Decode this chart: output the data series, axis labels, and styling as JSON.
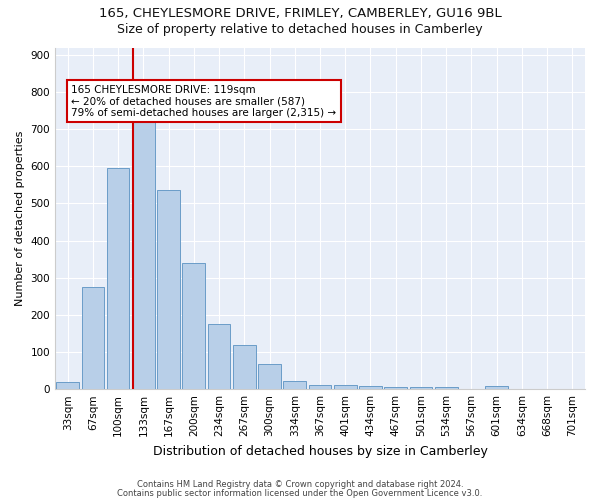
{
  "title1": "165, CHEYLESMORE DRIVE, FRIMLEY, CAMBERLEY, GU16 9BL",
  "title2": "Size of property relative to detached houses in Camberley",
  "xlabel": "Distribution of detached houses by size in Camberley",
  "ylabel": "Number of detached properties",
  "categories": [
    "33sqm",
    "67sqm",
    "100sqm",
    "133sqm",
    "167sqm",
    "200sqm",
    "234sqm",
    "267sqm",
    "300sqm",
    "334sqm",
    "367sqm",
    "401sqm",
    "434sqm",
    "467sqm",
    "501sqm",
    "534sqm",
    "567sqm",
    "601sqm",
    "634sqm",
    "668sqm",
    "701sqm"
  ],
  "values": [
    18,
    275,
    595,
    740,
    535,
    340,
    175,
    120,
    68,
    22,
    12,
    10,
    8,
    6,
    5,
    5,
    0,
    8,
    0,
    0,
    0
  ],
  "bar_color": "#b8cfe8",
  "bar_edge_color": "#6a9cc8",
  "annotation_line1": "165 CHEYLESMORE DRIVE: 119sqm",
  "annotation_line2": "← 20% of detached houses are smaller (587)",
  "annotation_line3": "79% of semi-detached houses are larger (2,315) →",
  "annotation_box_color": "#ffffff",
  "annotation_box_edge": "#cc0000",
  "vline_color": "#cc0000",
  "ylim": [
    0,
    920
  ],
  "yticks": [
    0,
    100,
    200,
    300,
    400,
    500,
    600,
    700,
    800,
    900
  ],
  "footnote1": "Contains HM Land Registry data © Crown copyright and database right 2024.",
  "footnote2": "Contains public sector information licensed under the Open Government Licence v3.0.",
  "fig_bg_color": "#ffffff",
  "plot_bg_color": "#e8eef8",
  "grid_color": "#ffffff",
  "title1_fontsize": 9.5,
  "title2_fontsize": 9,
  "xlabel_fontsize": 9,
  "ylabel_fontsize": 8,
  "tick_fontsize": 7.5,
  "annot_fontsize": 7.5,
  "footnote_fontsize": 6
}
